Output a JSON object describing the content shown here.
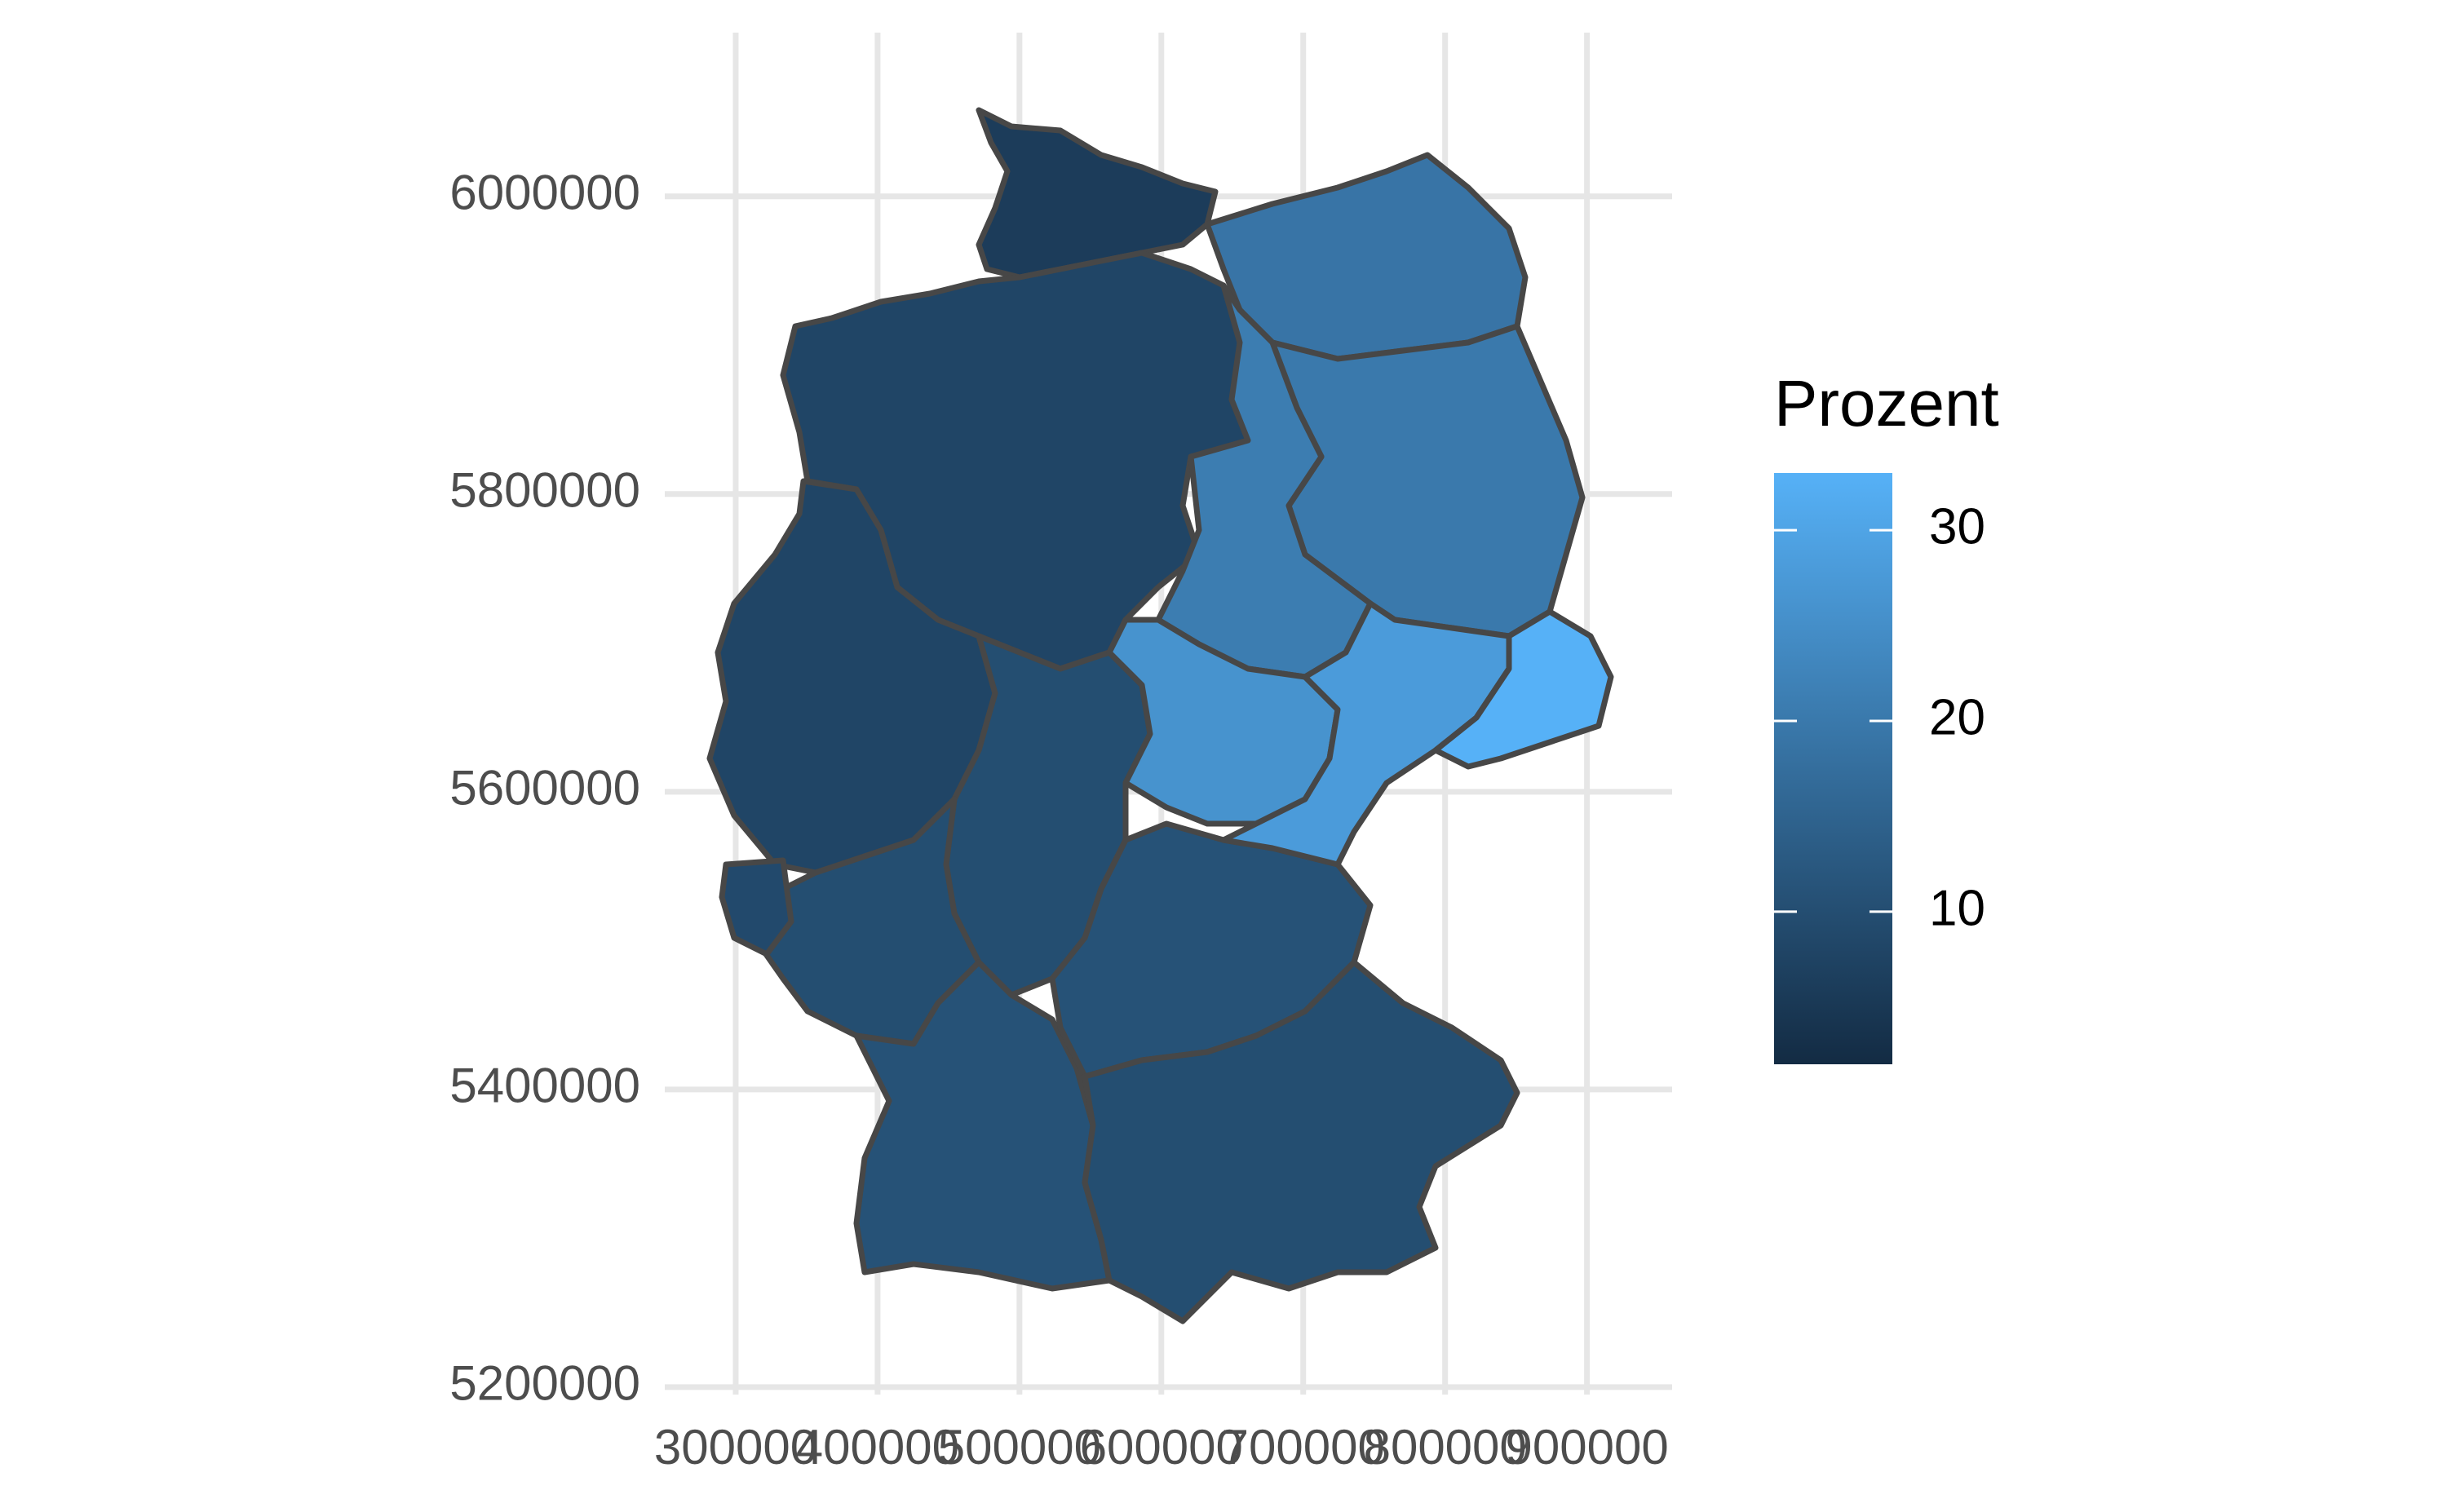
{
  "chart_data": {
    "type": "choropleth_map",
    "title": "",
    "xlabel": "",
    "ylabel": "",
    "x_ticks": [
      "300000",
      "400000",
      "500000",
      "600000",
      "700000",
      "800000",
      "900000"
    ],
    "x_tick_values": [
      300000,
      400000,
      500000,
      600000,
      700000,
      800000,
      900000
    ],
    "y_ticks": [
      "5200000",
      "5400000",
      "5600000",
      "5800000",
      "6000000"
    ],
    "y_tick_values": [
      5200000,
      5400000,
      5600000,
      5800000,
      6000000
    ],
    "xlim": [
      250000,
      960000
    ],
    "ylim": [
      5195000,
      6110000
    ],
    "grid": true,
    "legend": {
      "title": "Prozent",
      "position": "right",
      "range": [
        2,
        33
      ],
      "breaks": [
        10,
        20,
        30
      ],
      "break_labels": [
        "10",
        "20",
        "30"
      ],
      "color_low": "#132B43",
      "color_high": "#56B1F7"
    },
    "regions": [
      {
        "id": "schleswig-holstein",
        "value": 6
      },
      {
        "id": "niedersachsen",
        "value": 8
      },
      {
        "id": "nordrhein-westfalen",
        "value": 8
      },
      {
        "id": "hessen",
        "value": 10
      },
      {
        "id": "rheinland-pfalz",
        "value": 10
      },
      {
        "id": "saarland",
        "value": 9
      },
      {
        "id": "baden-wuerttemberg",
        "value": 11
      },
      {
        "id": "bayern-nord",
        "value": 11
      },
      {
        "id": "bayern-sued",
        "value": 10
      },
      {
        "id": "mecklenburg-vorpommern",
        "value": 19
      },
      {
        "id": "brandenburg",
        "value": 20
      },
      {
        "id": "sachsen-anhalt",
        "value": 21
      },
      {
        "id": "thueringen",
        "value": 26
      },
      {
        "id": "sachsen",
        "value": 28
      },
      {
        "id": "sachsen-ost",
        "value": 33
      }
    ]
  }
}
